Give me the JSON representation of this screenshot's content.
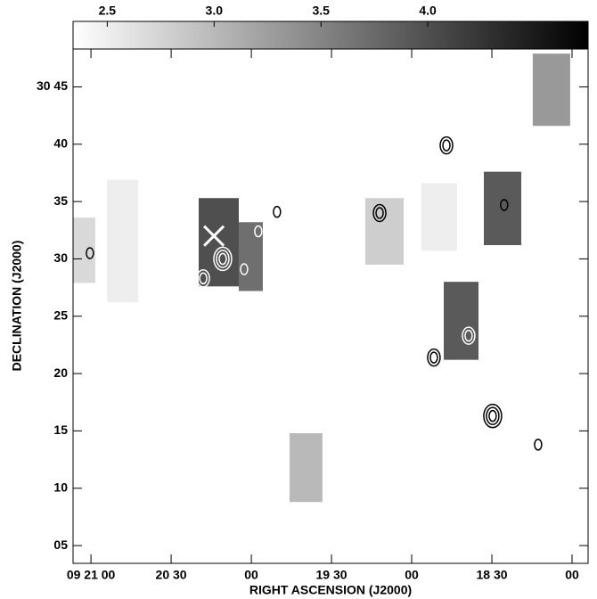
{
  "chart_data": {
    "type": "image",
    "xlabel": "RIGHT ASCENSION (J2000)",
    "ylabel": "DECLINATION (J2000)",
    "xlim": [
      186.7,
      -6
    ],
    "ylim": [
      3.45,
      48.3
    ],
    "xticks": [
      {
        "value": 180,
        "label": "09 21 00"
      },
      {
        "value": 150,
        "label": "20 30"
      },
      {
        "value": 120,
        "label": "00"
      },
      {
        "value": 90,
        "label": "19 30"
      },
      {
        "value": 60,
        "label": "00"
      },
      {
        "value": 30,
        "label": "18 30"
      },
      {
        "value": 0,
        "label": "00"
      }
    ],
    "yticks": [
      {
        "value": 5,
        "label": "05"
      },
      10,
      15,
      20,
      25,
      30,
      35,
      40,
      {
        "value": 45,
        "label": "30 45"
      }
    ],
    "clim": [
      2.34,
      4.75
    ],
    "cticks": [
      2.5,
      {
        "value": 3,
        "label": "3.0"
      },
      3.5,
      {
        "value": 4,
        "label": "4.0"
      }
    ],
    "regions": [
      {
        "x": [
          186.7,
          178.4
        ],
        "y": [
          27.9,
          33.6
        ],
        "value": 2.7
      },
      {
        "x": [
          174.0,
          162.4
        ],
        "y": [
          26.2,
          36.9
        ],
        "value": 2.5
      },
      {
        "x": [
          139.7,
          124.7
        ],
        "y": [
          27.6,
          35.3
        ],
        "value": 4.0
      },
      {
        "x": [
          124.7,
          115.7
        ],
        "y": [
          27.2,
          33.2
        ],
        "value": 3.7
      },
      {
        "x": [
          105.7,
          93.4
        ],
        "y": [
          8.8,
          14.8
        ],
        "value": 3.0
      },
      {
        "x": [
          77.4,
          63.0
        ],
        "y": [
          29.5,
          35.3
        ],
        "value": 2.8
      },
      {
        "x": [
          56.4,
          43.0
        ],
        "y": [
          30.7,
          36.6
        ],
        "value": 2.5
      },
      {
        "x": [
          48.0,
          35.0
        ],
        "y": [
          21.2,
          28.0
        ],
        "value": 3.9
      },
      {
        "x": [
          33.0,
          19.0
        ],
        "y": [
          31.2,
          37.6
        ],
        "value": 3.9
      },
      {
        "x": [
          14.7,
          0.7
        ],
        "y": [
          41.6,
          47.9
        ],
        "value": 3.3
      }
    ],
    "sources": [
      {
        "x": 180.4,
        "y": 30.5,
        "levels": 1,
        "color": "#000"
      },
      {
        "x": 138.0,
        "y": 28.3,
        "levels": 2,
        "color": "#fff"
      },
      {
        "x": 130.7,
        "y": 30.0,
        "levels": 3,
        "color": "#fff"
      },
      {
        "x": 122.7,
        "y": 29.1,
        "levels": 1,
        "color": "#fff"
      },
      {
        "x": 117.4,
        "y": 32.4,
        "levels": 1,
        "color": "#fff"
      },
      {
        "x": 110.4,
        "y": 34.1,
        "levels": 1,
        "color": "#000"
      },
      {
        "x": 72.0,
        "y": 34.0,
        "levels": 2,
        "color": "#000"
      },
      {
        "x": 47.0,
        "y": 39.9,
        "levels": 2,
        "color": "#000"
      },
      {
        "x": 25.4,
        "y": 34.7,
        "levels": 1,
        "color": "#000"
      },
      {
        "x": 38.7,
        "y": 23.3,
        "levels": 2,
        "color": "#fff"
      },
      {
        "x": 51.7,
        "y": 21.4,
        "levels": 2,
        "color": "#000"
      },
      {
        "x": 29.7,
        "y": 16.3,
        "levels": 3,
        "color": "#000"
      },
      {
        "x": 12.7,
        "y": 13.8,
        "levels": 1,
        "color": "#000"
      }
    ],
    "marker": {
      "x": 134.0,
      "y": 32.0,
      "color": "#fff"
    }
  }
}
